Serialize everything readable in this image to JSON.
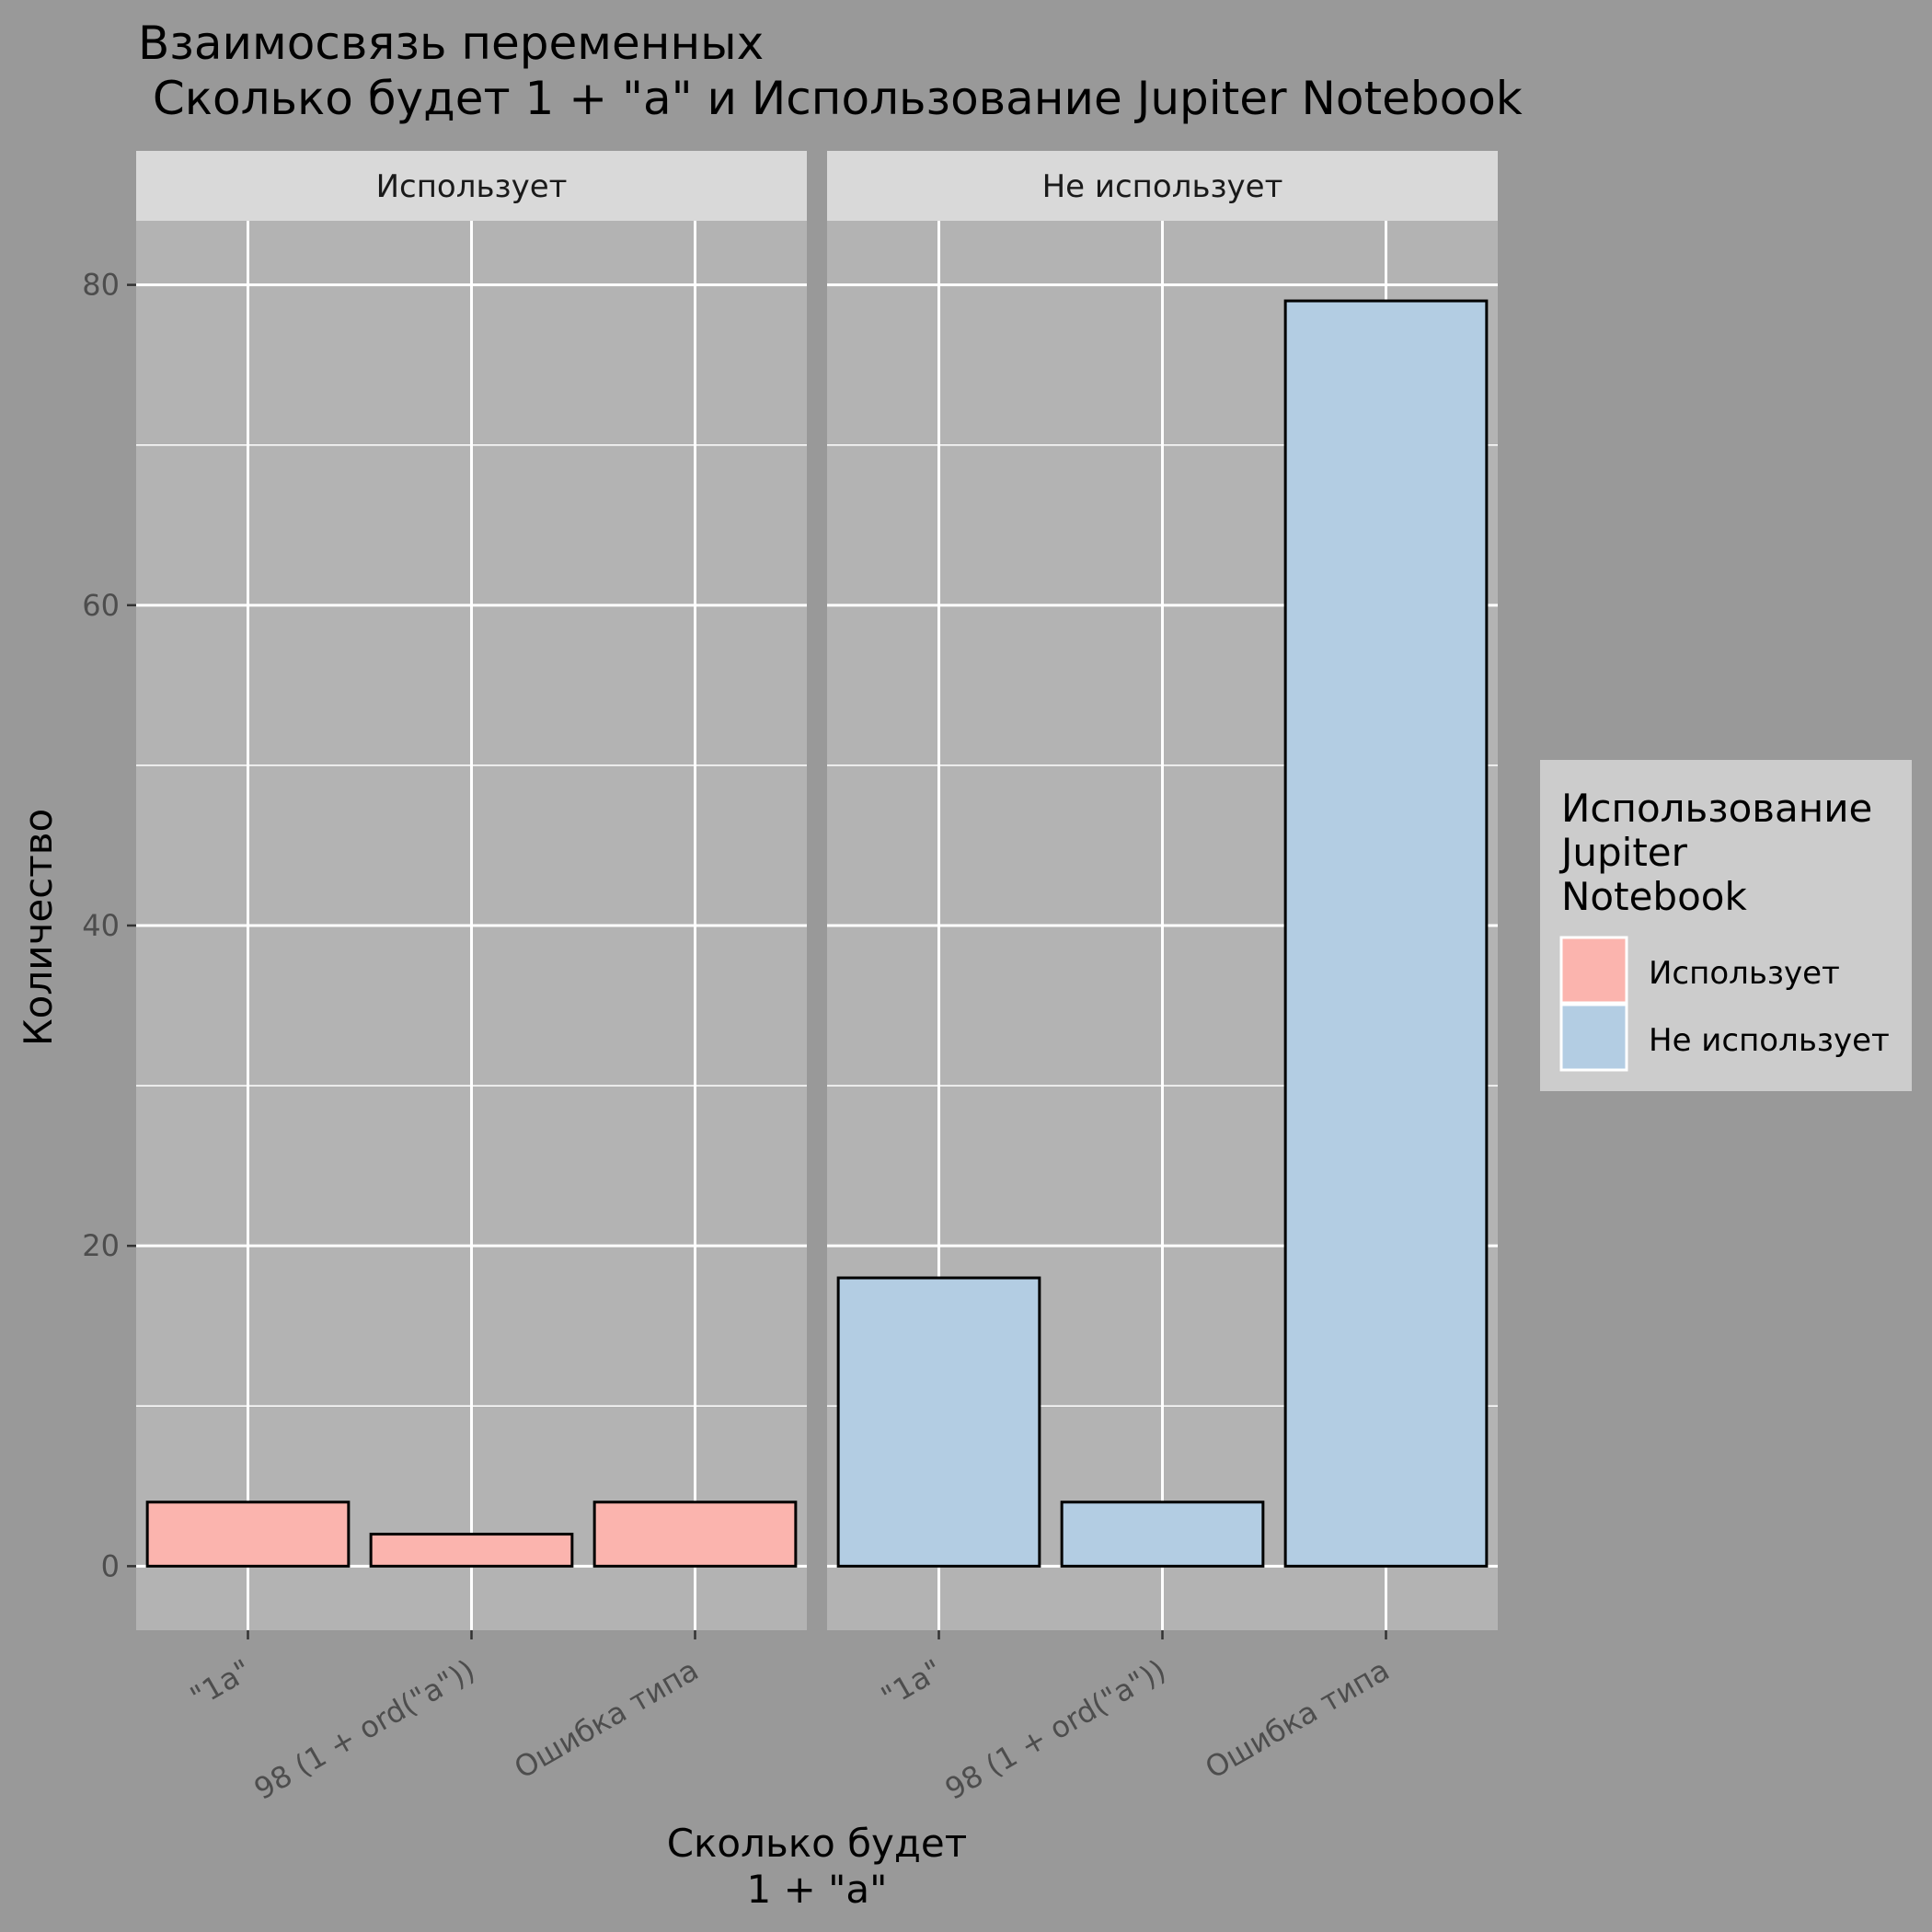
{
  "title_line1": "Взаимосвязь переменных",
  "title_line2": " Сколько будет 1 + \"a\" и Использование Jupiter Notebook",
  "chart_data": {
    "type": "bar",
    "facets": [
      "Использует",
      "Не использует"
    ],
    "categories": [
      "\"1a\"",
      "98 (1 + ord(\"a\"))",
      "Ошибка типа"
    ],
    "series": [
      {
        "name": "Использует",
        "facet": "Использует",
        "values": [
          4,
          2,
          4
        ],
        "color": "#FBB4AE"
      },
      {
        "name": "Не использует",
        "facet": "Не использует",
        "values": [
          18,
          4,
          79
        ],
        "color": "#B3CDE3"
      }
    ],
    "xlabel_line1": "Сколько будет",
    "xlabel_line2": "1 + \"a\"",
    "ylabel": "Количество",
    "ylim": [
      -4,
      84
    ],
    "yticks": [
      0,
      20,
      40,
      60,
      80
    ],
    "grid": true,
    "legend_position": "right",
    "legend_title_lines": [
      "Использование",
      "Jupiter",
      "Notebook"
    ],
    "legend_items": [
      {
        "label": "Использует",
        "color": "#FBB4AE"
      },
      {
        "label": "Не использует",
        "color": "#B3CDE3"
      }
    ]
  }
}
